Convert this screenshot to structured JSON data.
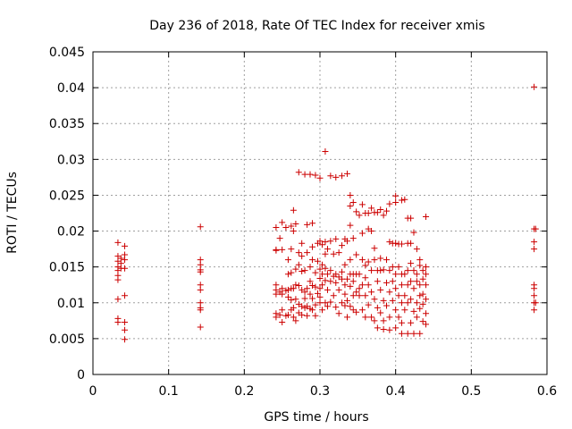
{
  "chart_data": {
    "type": "scatter",
    "title": "Day 236 of 2018, Rate Of TEC Index for receiver xmis",
    "xlabel": "GPS time / hours",
    "ylabel": "ROTI / TECUs",
    "xlim": [
      0,
      0.6
    ],
    "ylim": [
      0,
      0.045
    ],
    "grid": true,
    "x_ticks": [
      0,
      0.1,
      0.2,
      0.3,
      0.4,
      0.5,
      0.6
    ],
    "x_tick_labels": [
      "0",
      "0.1",
      "0.2",
      "0.3",
      "0.4",
      "0.5",
      "0.6"
    ],
    "y_ticks": [
      0,
      0.005,
      0.01,
      0.015,
      0.02,
      0.025,
      0.03,
      0.035,
      0.04,
      0.045
    ],
    "y_tick_labels": [
      "0",
      "0.005",
      "0.01",
      "0.015",
      "0.02",
      "0.025",
      "0.03",
      "0.035",
      "0.04",
      "0.045"
    ],
    "marker": "+",
    "color": "#cc0000",
    "points": [
      [
        0.033,
        0.0184
      ],
      [
        0.033,
        0.0165
      ],
      [
        0.033,
        0.0158
      ],
      [
        0.033,
        0.015
      ],
      [
        0.033,
        0.0145
      ],
      [
        0.033,
        0.0138
      ],
      [
        0.033,
        0.0132
      ],
      [
        0.033,
        0.0105
      ],
      [
        0.033,
        0.0078
      ],
      [
        0.033,
        0.0073
      ],
      [
        0.037,
        0.0162
      ],
      [
        0.037,
        0.0155
      ],
      [
        0.037,
        0.0148
      ],
      [
        0.042,
        0.0179
      ],
      [
        0.042,
        0.0167
      ],
      [
        0.042,
        0.016
      ],
      [
        0.042,
        0.0148
      ],
      [
        0.042,
        0.011
      ],
      [
        0.042,
        0.0073
      ],
      [
        0.042,
        0.0062
      ],
      [
        0.042,
        0.0049
      ],
      [
        0.142,
        0.0206
      ],
      [
        0.142,
        0.016
      ],
      [
        0.142,
        0.0153
      ],
      [
        0.142,
        0.0146
      ],
      [
        0.142,
        0.0143
      ],
      [
        0.142,
        0.0125
      ],
      [
        0.142,
        0.0118
      ],
      [
        0.142,
        0.01
      ],
      [
        0.142,
        0.0093
      ],
      [
        0.142,
        0.009
      ],
      [
        0.142,
        0.0066
      ],
      [
        0.242,
        0.0205
      ],
      [
        0.242,
        0.0174
      ],
      [
        0.242,
        0.0173
      ],
      [
        0.242,
        0.0125
      ],
      [
        0.242,
        0.0118
      ],
      [
        0.242,
        0.0112
      ],
      [
        0.242,
        0.0085
      ],
      [
        0.242,
        0.008
      ],
      [
        0.247,
        0.019
      ],
      [
        0.247,
        0.0115
      ],
      [
        0.247,
        0.0083
      ],
      [
        0.25,
        0.0212
      ],
      [
        0.25,
        0.0174
      ],
      [
        0.25,
        0.012
      ],
      [
        0.25,
        0.0112
      ],
      [
        0.25,
        0.009
      ],
      [
        0.25,
        0.0073
      ],
      [
        0.255,
        0.0205
      ],
      [
        0.255,
        0.0117
      ],
      [
        0.255,
        0.0082
      ],
      [
        0.258,
        0.016
      ],
      [
        0.258,
        0.014
      ],
      [
        0.258,
        0.0118
      ],
      [
        0.258,
        0.0108
      ],
      [
        0.258,
        0.0083
      ],
      [
        0.262,
        0.0207
      ],
      [
        0.262,
        0.0175
      ],
      [
        0.262,
        0.0142
      ],
      [
        0.262,
        0.012
      ],
      [
        0.262,
        0.0104
      ],
      [
        0.262,
        0.009
      ],
      [
        0.265,
        0.0229
      ],
      [
        0.265,
        0.02
      ],
      [
        0.265,
        0.012
      ],
      [
        0.265,
        0.0093
      ],
      [
        0.265,
        0.008
      ],
      [
        0.268,
        0.021
      ],
      [
        0.268,
        0.0147
      ],
      [
        0.268,
        0.0125
      ],
      [
        0.268,
        0.0105
      ],
      [
        0.268,
        0.0075
      ],
      [
        0.272,
        0.0282
      ],
      [
        0.272,
        0.017
      ],
      [
        0.272,
        0.0153
      ],
      [
        0.272,
        0.0124
      ],
      [
        0.272,
        0.0098
      ],
      [
        0.272,
        0.0086
      ],
      [
        0.276,
        0.0183
      ],
      [
        0.276,
        0.0165
      ],
      [
        0.276,
        0.0144
      ],
      [
        0.276,
        0.0118
      ],
      [
        0.276,
        0.0095
      ],
      [
        0.276,
        0.0083
      ],
      [
        0.28,
        0.0279
      ],
      [
        0.28,
        0.0145
      ],
      [
        0.28,
        0.0115
      ],
      [
        0.28,
        0.0106
      ],
      [
        0.28,
        0.0093
      ],
      [
        0.283,
        0.0209
      ],
      [
        0.283,
        0.017
      ],
      [
        0.283,
        0.012
      ],
      [
        0.283,
        0.0095
      ],
      [
        0.283,
        0.0082
      ],
      [
        0.287,
        0.0279
      ],
      [
        0.287,
        0.015
      ],
      [
        0.287,
        0.013
      ],
      [
        0.287,
        0.0112
      ],
      [
        0.287,
        0.0092
      ],
      [
        0.29,
        0.0211
      ],
      [
        0.29,
        0.0178
      ],
      [
        0.29,
        0.016
      ],
      [
        0.29,
        0.0124
      ],
      [
        0.29,
        0.0106
      ],
      [
        0.29,
        0.009
      ],
      [
        0.294,
        0.0278
      ],
      [
        0.294,
        0.0142
      ],
      [
        0.294,
        0.0122
      ],
      [
        0.294,
        0.0097
      ],
      [
        0.294,
        0.0082
      ],
      [
        0.297,
        0.0183
      ],
      [
        0.297,
        0.0158
      ],
      [
        0.297,
        0.0113
      ],
      [
        0.3,
        0.0274
      ],
      [
        0.3,
        0.0186
      ],
      [
        0.3,
        0.0147
      ],
      [
        0.3,
        0.0134
      ],
      [
        0.3,
        0.012
      ],
      [
        0.3,
        0.0108
      ],
      [
        0.3,
        0.01
      ],
      [
        0.303,
        0.0181
      ],
      [
        0.303,
        0.0153
      ],
      [
        0.303,
        0.014
      ],
      [
        0.303,
        0.0125
      ],
      [
        0.303,
        0.009
      ],
      [
        0.307,
        0.0311
      ],
      [
        0.307,
        0.0185
      ],
      [
        0.307,
        0.0168
      ],
      [
        0.307,
        0.0148
      ],
      [
        0.307,
        0.0131
      ],
      [
        0.307,
        0.01
      ],
      [
        0.31,
        0.0175
      ],
      [
        0.31,
        0.014
      ],
      [
        0.31,
        0.0118
      ],
      [
        0.31,
        0.0095
      ],
      [
        0.314,
        0.0277
      ],
      [
        0.314,
        0.0186
      ],
      [
        0.314,
        0.0145
      ],
      [
        0.314,
        0.013
      ],
      [
        0.314,
        0.0101
      ],
      [
        0.318,
        0.0168
      ],
      [
        0.318,
        0.0137
      ],
      [
        0.318,
        0.011
      ],
      [
        0.321,
        0.0275
      ],
      [
        0.321,
        0.0189
      ],
      [
        0.321,
        0.014
      ],
      [
        0.321,
        0.0128
      ],
      [
        0.321,
        0.0094
      ],
      [
        0.325,
        0.017
      ],
      [
        0.325,
        0.0136
      ],
      [
        0.325,
        0.0118
      ],
      [
        0.325,
        0.0085
      ],
      [
        0.329,
        0.0277
      ],
      [
        0.329,
        0.018
      ],
      [
        0.329,
        0.0143
      ],
      [
        0.329,
        0.0133
      ],
      [
        0.329,
        0.01
      ],
      [
        0.333,
        0.0189
      ],
      [
        0.333,
        0.0153
      ],
      [
        0.333,
        0.0125
      ],
      [
        0.333,
        0.0112
      ],
      [
        0.333,
        0.0096
      ],
      [
        0.336,
        0.028
      ],
      [
        0.336,
        0.0186
      ],
      [
        0.336,
        0.0133
      ],
      [
        0.336,
        0.0103
      ],
      [
        0.336,
        0.008
      ],
      [
        0.34,
        0.025
      ],
      [
        0.34,
        0.0235
      ],
      [
        0.34,
        0.0208
      ],
      [
        0.34,
        0.016
      ],
      [
        0.34,
        0.014
      ],
      [
        0.34,
        0.0123
      ],
      [
        0.34,
        0.0095
      ],
      [
        0.344,
        0.024
      ],
      [
        0.344,
        0.019
      ],
      [
        0.344,
        0.014
      ],
      [
        0.344,
        0.013
      ],
      [
        0.344,
        0.011
      ],
      [
        0.344,
        0.009
      ],
      [
        0.348,
        0.0227
      ],
      [
        0.348,
        0.0167
      ],
      [
        0.348,
        0.014
      ],
      [
        0.348,
        0.0115
      ],
      [
        0.348,
        0.0087
      ],
      [
        0.352,
        0.0222
      ],
      [
        0.352,
        0.014
      ],
      [
        0.352,
        0.012
      ],
      [
        0.352,
        0.011
      ],
      [
        0.356,
        0.0237
      ],
      [
        0.356,
        0.0197
      ],
      [
        0.356,
        0.016
      ],
      [
        0.356,
        0.0125
      ],
      [
        0.356,
        0.009
      ],
      [
        0.36,
        0.0225
      ],
      [
        0.36,
        0.0152
      ],
      [
        0.36,
        0.0135
      ],
      [
        0.36,
        0.011
      ],
      [
        0.36,
        0.008
      ],
      [
        0.364,
        0.0225
      ],
      [
        0.364,
        0.0203
      ],
      [
        0.364,
        0.0157
      ],
      [
        0.364,
        0.0125
      ],
      [
        0.364,
        0.0097
      ],
      [
        0.368,
        0.0232
      ],
      [
        0.368,
        0.02
      ],
      [
        0.368,
        0.0145
      ],
      [
        0.368,
        0.0115
      ],
      [
        0.368,
        0.008
      ],
      [
        0.372,
        0.0226
      ],
      [
        0.372,
        0.0176
      ],
      [
        0.372,
        0.016
      ],
      [
        0.372,
        0.0105
      ],
      [
        0.372,
        0.0075
      ],
      [
        0.376,
        0.0226
      ],
      [
        0.376,
        0.0145
      ],
      [
        0.376,
        0.013
      ],
      [
        0.376,
        0.0093
      ],
      [
        0.376,
        0.0065
      ],
      [
        0.38,
        0.023
      ],
      [
        0.38,
        0.0162
      ],
      [
        0.38,
        0.0145
      ],
      [
        0.38,
        0.0118
      ],
      [
        0.38,
        0.0086
      ],
      [
        0.384,
        0.0222
      ],
      [
        0.384,
        0.0146
      ],
      [
        0.384,
        0.0103
      ],
      [
        0.384,
        0.0075
      ],
      [
        0.384,
        0.0063
      ],
      [
        0.388,
        0.0228
      ],
      [
        0.388,
        0.016
      ],
      [
        0.388,
        0.0128
      ],
      [
        0.388,
        0.0096
      ],
      [
        0.392,
        0.0238
      ],
      [
        0.392,
        0.0185
      ],
      [
        0.392,
        0.0145
      ],
      [
        0.392,
        0.0115
      ],
      [
        0.392,
        0.008
      ],
      [
        0.392,
        0.0062
      ],
      [
        0.396,
        0.0183
      ],
      [
        0.396,
        0.015
      ],
      [
        0.396,
        0.013
      ],
      [
        0.396,
        0.0103
      ],
      [
        0.4,
        0.0249
      ],
      [
        0.4,
        0.024
      ],
      [
        0.4,
        0.0183
      ],
      [
        0.4,
        0.014
      ],
      [
        0.4,
        0.012
      ],
      [
        0.4,
        0.009
      ],
      [
        0.4,
        0.0065
      ],
      [
        0.404,
        0.0182
      ],
      [
        0.404,
        0.015
      ],
      [
        0.404,
        0.011
      ],
      [
        0.404,
        0.008
      ],
      [
        0.408,
        0.0243
      ],
      [
        0.408,
        0.0182
      ],
      [
        0.408,
        0.014
      ],
      [
        0.408,
        0.0125
      ],
      [
        0.408,
        0.01
      ],
      [
        0.408,
        0.0072
      ],
      [
        0.408,
        0.0057
      ],
      [
        0.412,
        0.0244
      ],
      [
        0.412,
        0.014
      ],
      [
        0.412,
        0.011
      ],
      [
        0.412,
        0.009
      ],
      [
        0.416,
        0.0218
      ],
      [
        0.416,
        0.0183
      ],
      [
        0.416,
        0.0145
      ],
      [
        0.416,
        0.0125
      ],
      [
        0.416,
        0.01
      ],
      [
        0.416,
        0.0057
      ],
      [
        0.42,
        0.0218
      ],
      [
        0.42,
        0.0183
      ],
      [
        0.42,
        0.0155
      ],
      [
        0.42,
        0.013
      ],
      [
        0.42,
        0.0105
      ],
      [
        0.42,
        0.0072
      ],
      [
        0.424,
        0.0198
      ],
      [
        0.424,
        0.0145
      ],
      [
        0.424,
        0.012
      ],
      [
        0.424,
        0.0088
      ],
      [
        0.424,
        0.0057
      ],
      [
        0.428,
        0.0175
      ],
      [
        0.428,
        0.014
      ],
      [
        0.428,
        0.013
      ],
      [
        0.428,
        0.01
      ],
      [
        0.428,
        0.008
      ],
      [
        0.432,
        0.016
      ],
      [
        0.432,
        0.0152
      ],
      [
        0.432,
        0.0125
      ],
      [
        0.432,
        0.011
      ],
      [
        0.432,
        0.0092
      ],
      [
        0.432,
        0.0057
      ],
      [
        0.436,
        0.0145
      ],
      [
        0.436,
        0.0133
      ],
      [
        0.436,
        0.0112
      ],
      [
        0.436,
        0.0098
      ],
      [
        0.436,
        0.0074
      ],
      [
        0.44,
        0.022
      ],
      [
        0.44,
        0.015
      ],
      [
        0.44,
        0.014
      ],
      [
        0.44,
        0.0125
      ],
      [
        0.44,
        0.0105
      ],
      [
        0.44,
        0.0085
      ],
      [
        0.44,
        0.007
      ],
      [
        0.583,
        0.0401
      ],
      [
        0.583,
        0.0203
      ],
      [
        0.583,
        0.0185
      ],
      [
        0.583,
        0.0175
      ],
      [
        0.583,
        0.0125
      ],
      [
        0.583,
        0.012
      ],
      [
        0.583,
        0.011
      ],
      [
        0.583,
        0.01
      ],
      [
        0.583,
        0.009
      ],
      [
        0.585,
        0.0203
      ],
      [
        0.585,
        0.01
      ]
    ]
  }
}
